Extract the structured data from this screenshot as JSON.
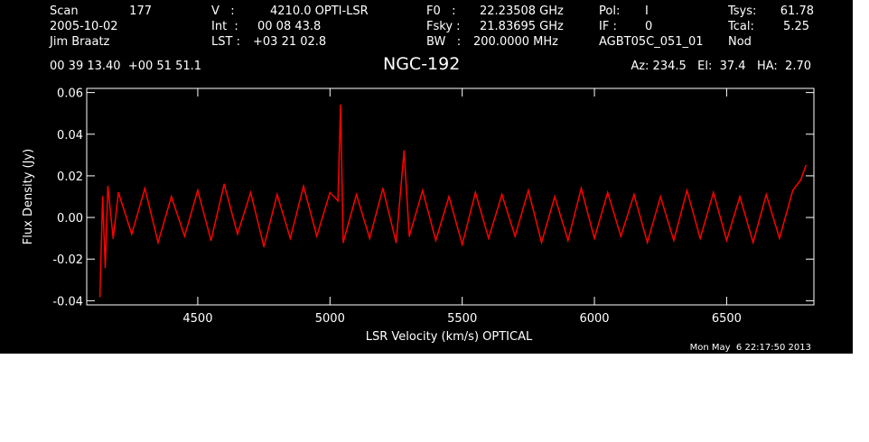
{
  "header": {
    "scan_label": "Scan",
    "scan_value": "177",
    "date": "2005-10-02",
    "observer": "Jim Braatz",
    "v_label": "V   :",
    "v_value": "4210.0 OPTI-LSR",
    "int_label": "Int  :",
    "int_value": "00 08 43.8",
    "lst_label": "LST :",
    "lst_value": "+03 21 02.8",
    "f0_label": "F0   :",
    "f0_value": "22.23508 GHz",
    "fsky_label": "Fsky :",
    "fsky_value": "21.83695 GHz",
    "bw_label": "BW   :",
    "bw_value": "200.0000 MHz",
    "pol_label": "Pol:",
    "pol_value": "I",
    "if_label": "IF :",
    "if_value": "0",
    "project": "AGBT05C_051_01",
    "tsys_label": "Tsys:",
    "tsys_value": "61.78",
    "tcal_label": "Tcal:",
    "tcal_value": "5.25",
    "mode": "Nod",
    "coords": "00 39 13.40  +00 51 51.1",
    "source": "NGC-192",
    "az_el_ha": "Az: 234.5   El:  37.4   HA:  2.70",
    "timestamp": "Mon May  6 22:17:50 2013"
  },
  "colors": {
    "background": "#000000",
    "foreground": "#ffffff",
    "series": "#ff0000"
  },
  "chart_data": {
    "type": "line",
    "xlabel": "LSR Velocity (km/s) OPTICAL",
    "ylabel": "Flux Density (Jy)",
    "xlim": [
      4080,
      6830
    ],
    "ylim": [
      -0.042,
      0.062
    ],
    "x_ticks": [
      4500,
      5000,
      5500,
      6000,
      6500
    ],
    "x_tick_labels": [
      "4500",
      "5000",
      "5500",
      "6000",
      "6500"
    ],
    "y_ticks": [
      -0.04,
      -0.02,
      0.0,
      0.02,
      0.04,
      0.06
    ],
    "y_tick_labels": [
      "-0.04",
      "-0.02",
      "0.00",
      "0.02",
      "0.04",
      "0.06"
    ],
    "grid": false,
    "series": [
      {
        "x": [
          4130,
          4140,
          4150,
          4160,
          4180,
          4200,
          4250,
          4300,
          4350,
          4400,
          4450,
          4500,
          4550,
          4600,
          4650,
          4700,
          4750,
          4800,
          4850,
          4900,
          4950,
          5000,
          5030,
          5040,
          5050,
          5100,
          5150,
          5200,
          5250,
          5280,
          5300,
          5350,
          5400,
          5450,
          5500,
          5550,
          5600,
          5650,
          5700,
          5750,
          5800,
          5850,
          5900,
          5950,
          6000,
          6050,
          6100,
          6150,
          6200,
          6250,
          6300,
          6350,
          6400,
          6450,
          6500,
          6550,
          6600,
          6650,
          6700,
          6750,
          6780,
          6800
        ],
        "y": [
          -0.038,
          0.01,
          -0.024,
          0.015,
          -0.01,
          0.012,
          -0.008,
          0.014,
          -0.012,
          0.01,
          -0.009,
          0.013,
          -0.011,
          0.016,
          -0.008,
          0.012,
          -0.014,
          0.011,
          -0.01,
          0.015,
          -0.009,
          0.012,
          0.008,
          0.054,
          -0.012,
          0.011,
          -0.01,
          0.014,
          -0.012,
          0.032,
          -0.009,
          0.013,
          -0.011,
          0.01,
          -0.013,
          0.012,
          -0.01,
          0.011,
          -0.009,
          0.013,
          -0.012,
          0.01,
          -0.011,
          0.014,
          -0.01,
          0.012,
          -0.009,
          0.011,
          -0.012,
          0.01,
          -0.011,
          0.013,
          -0.01,
          0.012,
          -0.011,
          0.01,
          -0.012,
          0.011,
          -0.01,
          0.013,
          0.018,
          0.025
        ]
      }
    ]
  }
}
